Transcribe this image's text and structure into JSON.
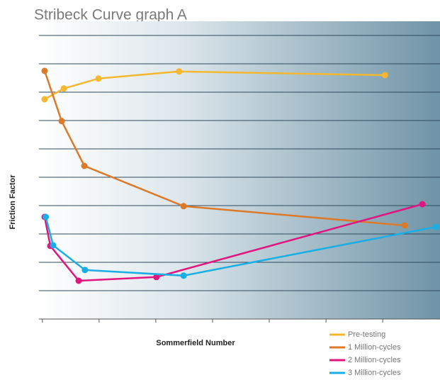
{
  "chart_data": {
    "type": "line",
    "title": "Stribeck Curve graph A",
    "xlabel": "Sommerfield Number",
    "ylabel": "Friction Factor",
    "xlim": [
      -0.06,
      7.01
    ],
    "xticks": [
      0,
      1,
      2,
      3,
      4,
      5,
      6
    ],
    "ylim": [
      0,
      10.5
    ],
    "yticks": [
      0,
      1,
      2,
      3,
      4,
      5,
      6,
      7,
      8,
      9,
      10
    ],
    "grid": true,
    "legend": "lower right",
    "series": [
      {
        "name": "Pre-testing",
        "color": "#f5b82e",
        "x": [
          0.04,
          0.38,
          0.99,
          2.41,
          6.04
        ],
        "values": [
          7.75,
          8.13,
          8.48,
          8.73,
          8.6
        ]
      },
      {
        "name": "1  Million-cycles",
        "color": "#dd7a2a",
        "x": [
          0.04,
          0.34,
          0.74,
          2.49,
          6.39
        ],
        "values": [
          8.75,
          6.98,
          5.4,
          3.98,
          3.3
        ]
      },
      {
        "name": "2 Million-cycles",
        "color": "#e0157f",
        "x": [
          0.04,
          0.14,
          0.64,
          2.01,
          6.7
        ],
        "values": [
          3.6,
          2.58,
          1.35,
          1.48,
          4.05
        ]
      },
      {
        "name": "3 Million-cycles",
        "color": "#1aaee6",
        "x": [
          0.06,
          0.19,
          0.75,
          2.49,
          6.94
        ],
        "values": [
          3.6,
          2.6,
          1.73,
          1.53,
          3.25
        ]
      }
    ]
  }
}
